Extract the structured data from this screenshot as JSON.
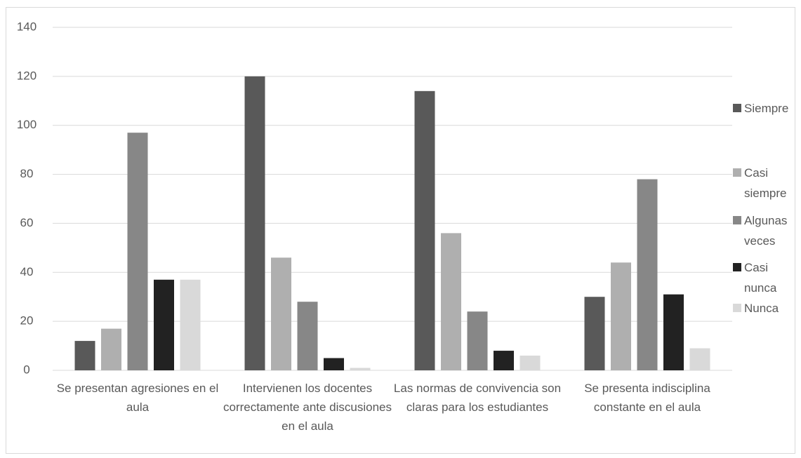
{
  "chart_data": {
    "type": "bar",
    "categories": [
      "Se presentan agresiones en el aula",
      "Intervienen los docentes correctamente ante discusiones en el aula",
      "Las normas de convivencia son claras para los estudiantes",
      "Se presenta indisciplina constante en el aula"
    ],
    "series": [
      {
        "name": "Siempre",
        "color": "#595959",
        "values": [
          12,
          120,
          114,
          30
        ]
      },
      {
        "name": "Casi siempre",
        "color": "#afafaf",
        "values": [
          17,
          46,
          56,
          44
        ]
      },
      {
        "name": "Algunas veces",
        "color": "#878787",
        "values": [
          97,
          28,
          24,
          78
        ]
      },
      {
        "name": "Casi nunca",
        "color": "#222222",
        "values": [
          37,
          5,
          8,
          31
        ]
      },
      {
        "name": "Nunca",
        "color": "#d9d9d9",
        "values": [
          37,
          1,
          6,
          9
        ]
      }
    ],
    "ylim": [
      0,
      140
    ],
    "yticks": [
      0,
      20,
      40,
      60,
      80,
      100,
      120,
      140
    ],
    "grid": true,
    "legend": "right"
  }
}
